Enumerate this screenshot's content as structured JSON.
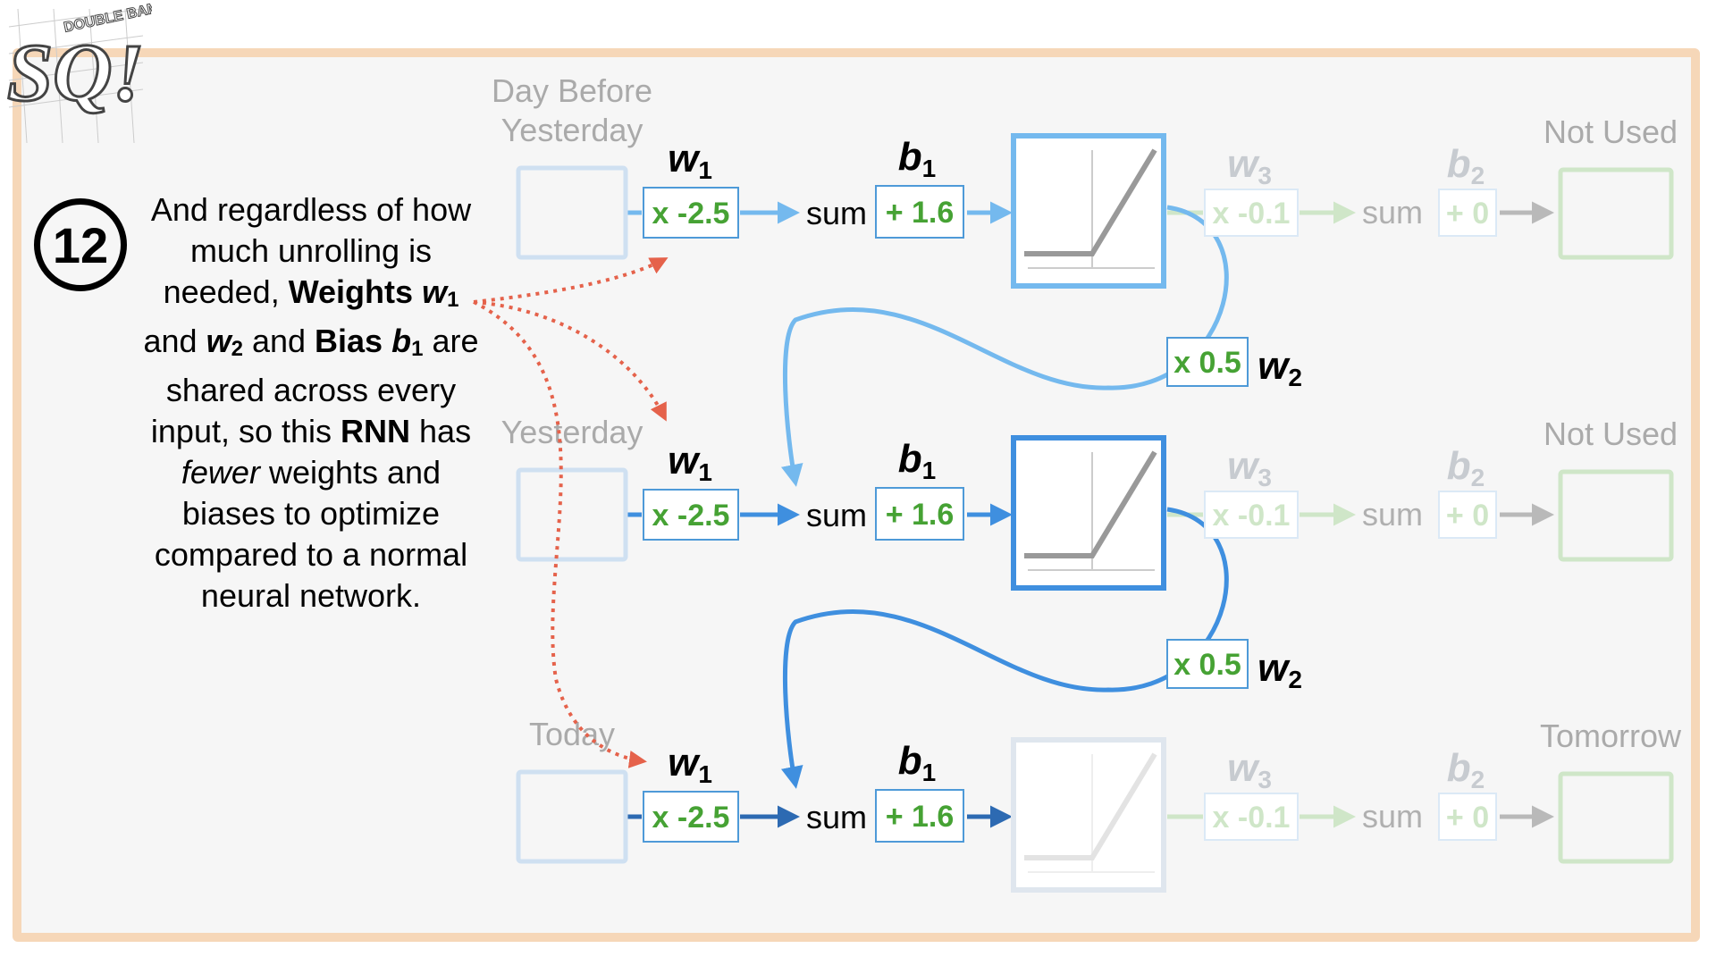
{
  "logo": {
    "letters": "SQ!",
    "lettering": "DOUBLE BAM!!!"
  },
  "step": {
    "number": "12",
    "parts": [
      {
        "t": "And regardless of how much unrolling is needed, ",
        "style": "normal"
      },
      {
        "t": "Weights ",
        "style": "bold"
      },
      {
        "t": "w",
        "style": "bolditalic"
      },
      {
        "t": "1",
        "style": "sub"
      },
      {
        "t": " and ",
        "style": "normal"
      },
      {
        "t": "w",
        "style": "bolditalic"
      },
      {
        "t": "2",
        "style": "sub"
      },
      {
        "t": " and ",
        "style": "normal"
      },
      {
        "t": "Bias ",
        "style": "bold"
      },
      {
        "t": "b",
        "style": "bolditalic"
      },
      {
        "t": "1",
        "style": "sub"
      },
      {
        "t": " are shared across every input, so this ",
        "style": "normal"
      },
      {
        "t": "RNN",
        "style": "bold"
      },
      {
        "t": " has ",
        "style": "normal"
      },
      {
        "t": "fewer",
        "style": "italic"
      },
      {
        "t": " weights and biases to optimize compared to a normal neural network.",
        "style": "normal"
      }
    ]
  },
  "labels": {
    "sum": "sum",
    "w1": {
      "base": "w",
      "sub": "1"
    },
    "b1": {
      "base": "b",
      "sub": "1"
    },
    "w2": {
      "base": "w",
      "sub": "2"
    },
    "w3": {
      "base": "w",
      "sub": "3"
    },
    "b2": {
      "base": "b",
      "sub": "2"
    }
  },
  "rows": [
    {
      "input_label": [
        "Day Before",
        "Yesterday"
      ],
      "output_label": "Not Used",
      "w1": "x -2.5",
      "b1": "+ 1.6",
      "w3": "x -0.1",
      "b2": "+ 0",
      "w2": "x 0.5",
      "color": "#74b9ee",
      "input_faded": true,
      "activation_faded": false
    },
    {
      "input_label": [
        "Yesterday"
      ],
      "output_label": "Not Used",
      "w1": "x -2.5",
      "b1": "+ 1.6",
      "w3": "x -0.1",
      "b2": "+ 0",
      "w2": "x 0.5",
      "color": "#3f8fdf",
      "input_faded": true,
      "activation_faded": false
    },
    {
      "input_label": [
        "Today"
      ],
      "output_label": "Tomorrow",
      "w1": "x -2.5",
      "b1": "+ 1.6",
      "w3": "x -0.1",
      "b2": "+ 0",
      "color": "#2d6ab2",
      "input_faded": true,
      "activation_faded": true
    }
  ],
  "colors": {
    "green_value": "#46a234",
    "box_border": "#4e9ad8",
    "pointer": "#e5624b",
    "faded_green": "#cfe6c8",
    "faded_gray": "#aaaaaa",
    "frame_border": "#f6d7b8"
  }
}
